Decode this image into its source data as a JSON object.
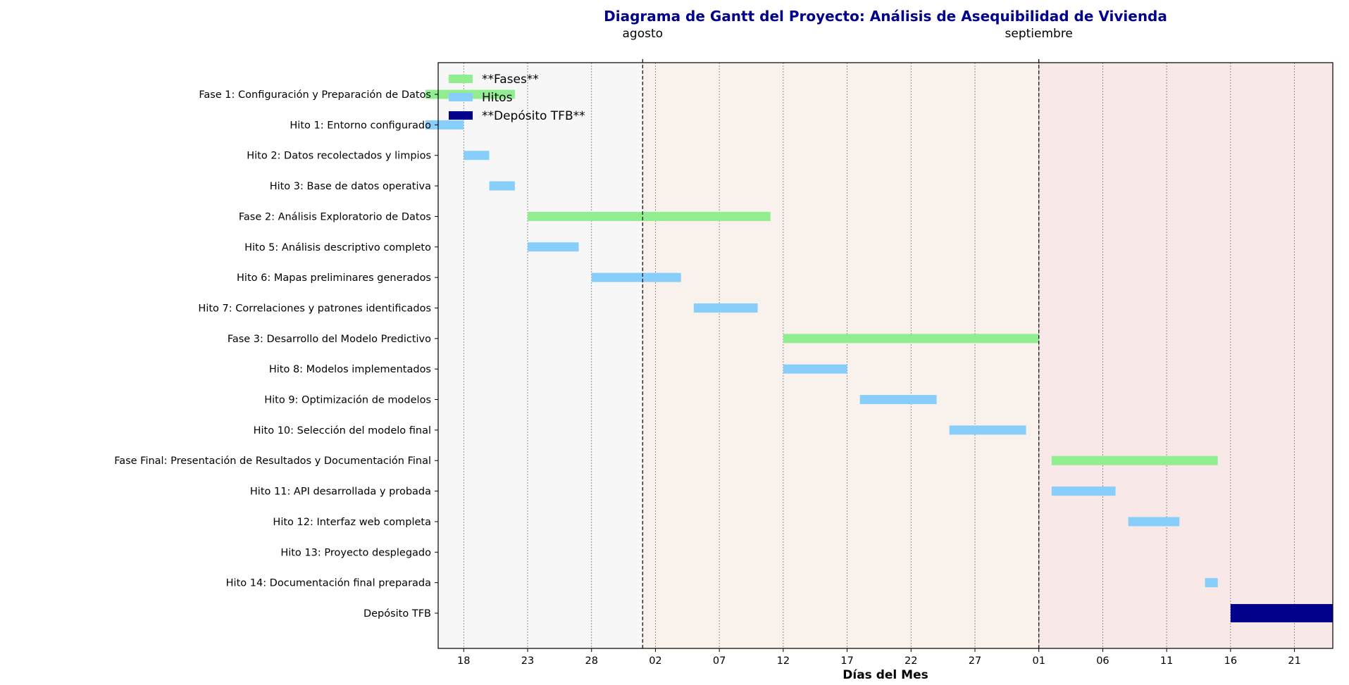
{
  "chart_data": {
    "type": "gantt",
    "title": "Diagrama de Gantt del Proyecto: Análisis de Asequibilidad de Vivienda",
    "xlabel": "Días del Mes",
    "ylabel": "",
    "xlim": [
      "2024-07-16",
      "2024-09-24"
    ],
    "grid": "vertical dotted",
    "month_labels": [
      {
        "date": "2024-08-01",
        "label": "agosto"
      },
      {
        "date": "2024-09-01",
        "label": "septiembre"
      }
    ],
    "x_ticks": [
      {
        "date": "2024-07-18",
        "label": "18"
      },
      {
        "date": "2024-07-23",
        "label": "23"
      },
      {
        "date": "2024-07-28",
        "label": "28"
      },
      {
        "date": "2024-08-02",
        "label": "02"
      },
      {
        "date": "2024-08-07",
        "label": "07"
      },
      {
        "date": "2024-08-12",
        "label": "12"
      },
      {
        "date": "2024-08-17",
        "label": "17"
      },
      {
        "date": "2024-08-22",
        "label": "22"
      },
      {
        "date": "2024-08-27",
        "label": "27"
      },
      {
        "date": "2024-09-01",
        "label": "01"
      },
      {
        "date": "2024-09-06",
        "label": "06"
      },
      {
        "date": "2024-09-11",
        "label": "11"
      },
      {
        "date": "2024-09-16",
        "label": "16"
      },
      {
        "date": "2024-09-21",
        "label": "21"
      }
    ],
    "month_shading": [
      {
        "start": "2024-07-16",
        "end": "2024-08-01",
        "color": "#f7f7f7"
      },
      {
        "start": "2024-08-01",
        "end": "2024-09-01",
        "color": "#f9f1ec"
      },
      {
        "start": "2024-09-01",
        "end": "2024-09-24",
        "color": "#f8e8e8"
      }
    ],
    "legend": {
      "position": "upper-left",
      "entries": [
        {
          "label": "**Fases**",
          "color": "#90ee90"
        },
        {
          "label": "Hitos",
          "color": "#87cefa"
        },
        {
          "label": "**Depósito TFB**",
          "color": "#00008b"
        }
      ]
    },
    "tasks": [
      {
        "name": "Fase 1: Configuración y Preparación de Datos",
        "kind": "fase",
        "start": "2024-07-15",
        "end": "2024-07-22",
        "color": "#90ee90"
      },
      {
        "name": "Hito 1: Entorno configurado",
        "kind": "hito",
        "start": "2024-07-15",
        "end": "2024-07-18",
        "color": "#87cefa"
      },
      {
        "name": "Hito 2: Datos recolectados y limpios",
        "kind": "hito",
        "start": "2024-07-18",
        "end": "2024-07-20",
        "color": "#87cefa"
      },
      {
        "name": "Hito 3: Base de datos operativa",
        "kind": "hito",
        "start": "2024-07-20",
        "end": "2024-07-22",
        "color": "#87cefa"
      },
      {
        "name": "Fase 2: Análisis Exploratorio de Datos",
        "kind": "fase",
        "start": "2024-07-23",
        "end": "2024-08-11",
        "color": "#90ee90"
      },
      {
        "name": "Hito 5: Análisis descriptivo completo",
        "kind": "hito",
        "start": "2024-07-23",
        "end": "2024-07-27",
        "color": "#87cefa"
      },
      {
        "name": "Hito 6: Mapas preliminares generados",
        "kind": "hito",
        "start": "2024-07-28",
        "end": "2024-08-04",
        "color": "#87cefa"
      },
      {
        "name": "Hito 7: Correlaciones y patrones identificados",
        "kind": "hito",
        "start": "2024-08-05",
        "end": "2024-08-10",
        "color": "#87cefa"
      },
      {
        "name": "Fase 3: Desarrollo del Modelo Predictivo",
        "kind": "fase",
        "start": "2024-08-12",
        "end": "2024-09-01",
        "color": "#90ee90"
      },
      {
        "name": "Hito 8: Modelos implementados",
        "kind": "hito",
        "start": "2024-08-12",
        "end": "2024-08-17",
        "color": "#87cefa"
      },
      {
        "name": "Hito 9: Optimización de modelos",
        "kind": "hito",
        "start": "2024-08-18",
        "end": "2024-08-24",
        "color": "#87cefa"
      },
      {
        "name": "Hito 10: Selección del modelo final",
        "kind": "hito",
        "start": "2024-08-25",
        "end": "2024-08-31",
        "color": "#87cefa"
      },
      {
        "name": "Fase Final: Presentación de Resultados y Documentación Final",
        "kind": "fase",
        "start": "2024-09-02",
        "end": "2024-09-15",
        "color": "#90ee90"
      },
      {
        "name": "Hito 11: API desarrollada y probada",
        "kind": "hito",
        "start": "2024-09-02",
        "end": "2024-09-07",
        "color": "#87cefa"
      },
      {
        "name": "Hito 12: Interfaz web completa",
        "kind": "hito",
        "start": "2024-09-08",
        "end": "2024-09-12",
        "color": "#87cefa"
      },
      {
        "name": "Hito 13: Proyecto desplegado",
        "kind": "hito",
        "start": null,
        "end": null,
        "color": "#87cefa"
      },
      {
        "name": "Hito 14: Documentación final preparada",
        "kind": "hito",
        "start": "2024-09-14",
        "end": "2024-09-15",
        "color": "#87cefa"
      },
      {
        "name": "Depósito TFB",
        "kind": "deposito",
        "start": "2024-09-16",
        "end": "2024-09-24",
        "color": "#00008b"
      }
    ]
  }
}
